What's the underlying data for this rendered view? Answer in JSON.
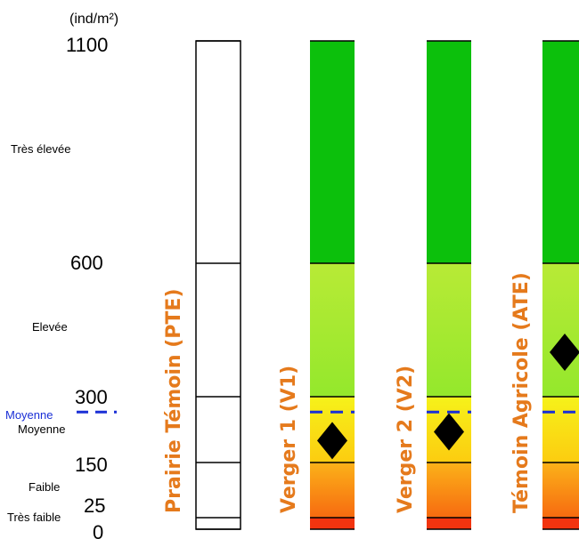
{
  "chart_data": {
    "type": "bar",
    "unit": "(ind/m²)",
    "scale": "piecewise",
    "scale_breaks": [
      0,
      25,
      150,
      300,
      600,
      1100
    ],
    "tick_labels": [
      "0",
      "25",
      "150",
      "300",
      "600",
      "1100"
    ],
    "classes": [
      {
        "label": "Très faible",
        "range": [
          0,
          25
        ]
      },
      {
        "label": "Faible",
        "range": [
          25,
          150
        ]
      },
      {
        "label": "Moyenne",
        "range": [
          150,
          300
        ]
      },
      {
        "label": "Elevée",
        "range": [
          300,
          600
        ]
      },
      {
        "label": "Très élevée",
        "range": [
          600,
          1100
        ]
      }
    ],
    "mean_reference": {
      "label": "Moyenne",
      "value": 265,
      "color": "#1a2fd6"
    },
    "categories": [
      "Prairie Témoin (PTE)",
      "Verger 1 (V1)",
      "Verger 2 (V2)",
      "Témoin Agricole (ATE)"
    ],
    "values": [
      null,
      200,
      220,
      400
    ],
    "colored": [
      false,
      true,
      true,
      true
    ],
    "ylim": [
      0,
      1100
    ],
    "grid": false,
    "legend": "none",
    "colors": {
      "label": "#e57a1c",
      "very_high": "#0cc00c",
      "high_top": "#b8ea36",
      "high_bottom": "#94e82c",
      "medium_top": "#f6f21a",
      "medium_bottom": "#fccc10",
      "low_top": "#fbb219",
      "low_bottom": "#f76a10",
      "very_low": "#f2340f",
      "marker": "#000000"
    }
  }
}
